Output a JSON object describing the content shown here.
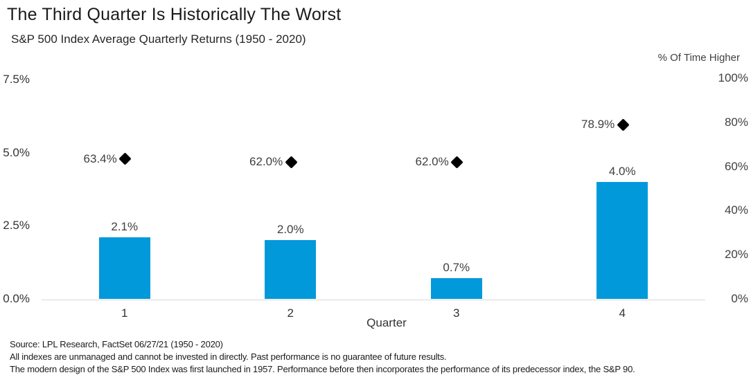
{
  "chart_data": {
    "type": "bar",
    "title": "The Third Quarter Is Historically The Worst",
    "subtitle": "S&P 500 Index Average Quarterly Returns (1950 - 2020)",
    "xlabel": "Quarter",
    "categories": [
      "1",
      "2",
      "3",
      "4"
    ],
    "series": [
      {
        "name": "Average Quarterly Return",
        "type": "bar",
        "axis": "left",
        "values": [
          2.1,
          2.0,
          0.7,
          4.0
        ],
        "labels": [
          "2.1%",
          "2.0%",
          "0.7%",
          "4.0%"
        ]
      },
      {
        "name": "% Of Time Higher",
        "type": "scatter",
        "marker": "diamond",
        "axis": "right",
        "values": [
          63.4,
          62.0,
          62.0,
          78.9
        ],
        "labels": [
          "63.4%",
          "62.0%",
          "62.0%",
          "78.9%"
        ]
      }
    ],
    "left_axis": {
      "range": [
        0,
        7.5
      ],
      "tick_values": [
        7.5,
        5.0,
        2.5,
        0.0
      ],
      "tick_labels": [
        "7.5%",
        "5.0%",
        "2.5%",
        "0.0%"
      ]
    },
    "right_axis": {
      "title": "% Of Time Higher",
      "range": [
        0,
        100
      ],
      "tick_values": [
        100,
        80,
        60,
        40,
        20,
        0
      ],
      "tick_labels": [
        "100%",
        "80%",
        "60%",
        "40%",
        "20%",
        "0%"
      ]
    },
    "grid": "baseline-only",
    "legend": "none",
    "colors": {
      "bar": "#0299db",
      "marker": "#000000",
      "baseline": "#d9d9d9"
    }
  },
  "footer": {
    "lines": [
      "Source: LPL Research, FactSet 06/27/21 (1950 - 2020)",
      "All indexes are unmanaged and cannot be invested in directly. Past performance is no guarantee of future results.",
      "The modern design of the S&P 500 Index was first launched in 1957. Performance before then incorporates the performance of its predecessor index, the S&P 90."
    ]
  }
}
